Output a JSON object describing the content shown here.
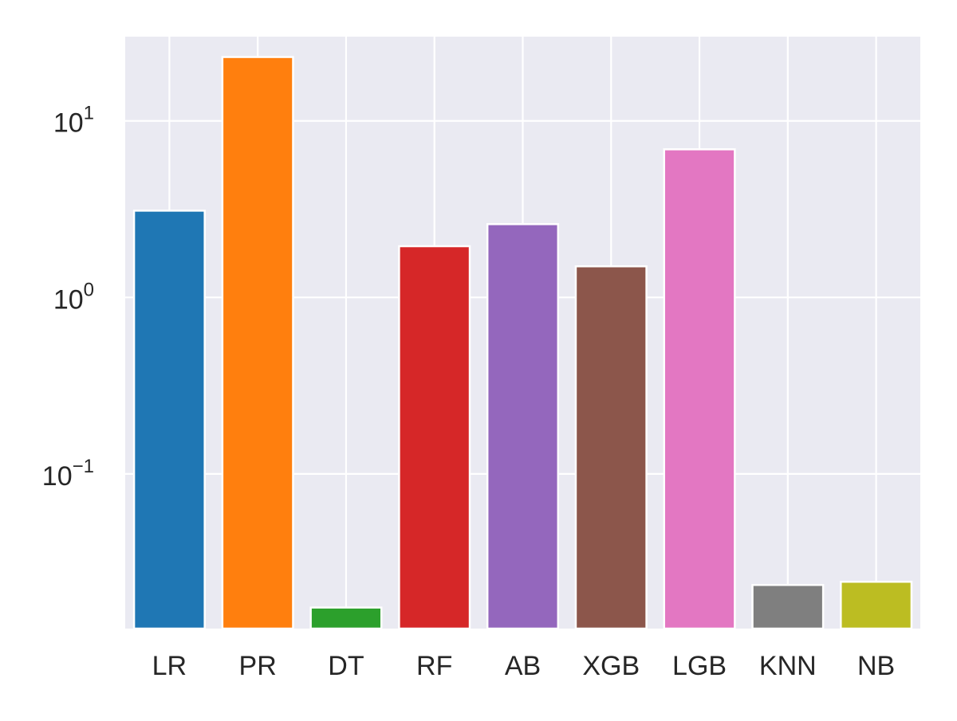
{
  "chart_data": {
    "type": "bar",
    "yscale": "log",
    "categories": [
      "LR",
      "PR",
      "DT",
      "RF",
      "AB",
      "XGB",
      "LGB",
      "KNN",
      "NB"
    ],
    "values": [
      3.1,
      23.0,
      0.0175,
      1.95,
      2.6,
      1.5,
      6.9,
      0.0235,
      0.0245
    ],
    "colors": [
      "#1f77b4",
      "#ff7f0e",
      "#2ca02c",
      "#d62728",
      "#9467bd",
      "#8c564b",
      "#e377c2",
      "#7f7f7f",
      "#bcbd22"
    ],
    "ylim": [
      0.0133,
      30
    ],
    "yticks": [
      {
        "value": 0.1,
        "base": "10",
        "exp": "−1"
      },
      {
        "value": 1,
        "base": "10",
        "exp": "0"
      },
      {
        "value": 10,
        "base": "10",
        "exp": "1"
      }
    ],
    "grid": true,
    "background": "#eaeaf2",
    "grid_color": "#ffffff",
    "xlabel": "",
    "ylabel": ""
  }
}
